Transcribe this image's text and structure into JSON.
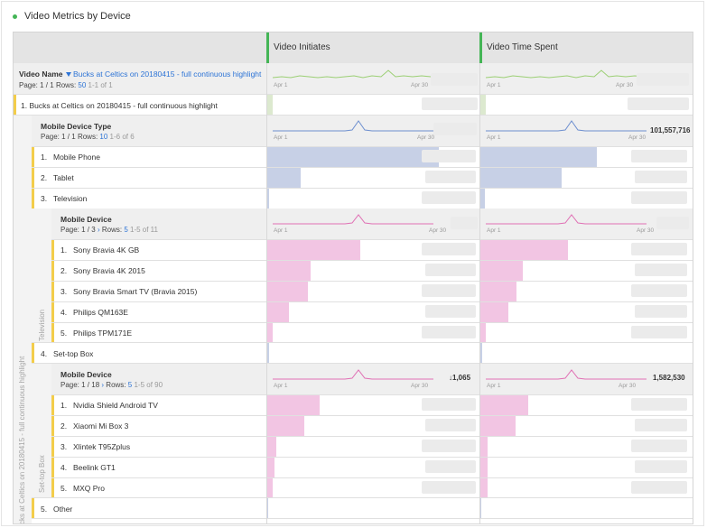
{
  "panel": {
    "title": "Video Metrics by Device"
  },
  "columns": [
    {
      "label": "Video Initiates",
      "axis_start": "Apr 1",
      "axis_end": "Apr 30"
    },
    {
      "label": "Video Time Spent",
      "axis_start": "Apr 1",
      "axis_end": "Apr 30"
    }
  ],
  "video_name": {
    "label": "Video Name",
    "filter": "Bucks at Celtics on 20180415 - full continuous highlight",
    "page": "Page: 1 / 1",
    "rows_label": "Rows:",
    "rows": "50",
    "range": "1-1 of 1",
    "item_num": "1.",
    "item": "Bucks at Celtics on 20180415 - full continuous highlight"
  },
  "mobile_device_type": {
    "label": "Mobile Device Type",
    "page": "Page: 1 / 1",
    "rows_label": "Rows:",
    "rows": "10",
    "range": "1-6 of 6",
    "total_time_spent": "101,557,716",
    "items": [
      {
        "num": "1.",
        "name": "Mobile Phone",
        "initiates_share": 0.98,
        "time_share": 0.56
      },
      {
        "num": "2.",
        "name": "Tablet",
        "initiates_share": 0.19,
        "time_share": 0.39
      },
      {
        "num": "3.",
        "name": "Television",
        "initiates_share": 0.01,
        "time_share": 0.02
      }
    ],
    "item4": {
      "num": "4.",
      "name": "Set-top Box"
    },
    "item5": {
      "num": "5.",
      "name": "Other"
    }
  },
  "tv_devices": {
    "label": "Mobile Device",
    "page": "Page: 1 / 3",
    "rows_label": "Rows:",
    "rows": "5",
    "range": "1-5 of 11",
    "side_label": "Television",
    "items": [
      {
        "num": "1.",
        "name": "Sony Bravia 4K GB",
        "initiates_share": 1.0,
        "time_share": 1.0
      },
      {
        "num": "2.",
        "name": "Sony Bravia 4K 2015",
        "initiates_share": 0.47,
        "time_share": 0.48
      },
      {
        "num": "3.",
        "name": "Sony Bravia Smart TV (Bravia 2015)",
        "initiates_share": 0.44,
        "time_share": 0.41
      },
      {
        "num": "4.",
        "name": "Philips QM163E",
        "initiates_share": 0.23,
        "time_share": 0.32
      },
      {
        "num": "5.",
        "name": "Philips TPM171E",
        "initiates_share": 0.06,
        "time_share": 0.06
      }
    ]
  },
  "stb_devices": {
    "label": "Mobile Device",
    "page": "Page: 1 / 18",
    "rows_label": "Rows:",
    "rows": "5",
    "range": "1-5 of 90",
    "side_label": "Set-top Box",
    "total_initiates": "1,065",
    "total_time_spent": "1,582,530",
    "items": [
      {
        "num": "1.",
        "name": "Nvidia Shield Android TV",
        "initiates_share": 1.0,
        "time_share": 1.0
      },
      {
        "num": "2.",
        "name": "Xiaomi Mi Box 3",
        "initiates_share": 0.71,
        "time_share": 0.74
      },
      {
        "num": "3.",
        "name": "Xlintek T95Zplus",
        "initiates_share": 0.17,
        "time_share": 0.15
      },
      {
        "num": "4.",
        "name": "Beelink GT1",
        "initiates_share": 0.13,
        "time_share": 0.15
      },
      {
        "num": "5.",
        "name": "MXQ Pro",
        "initiates_share": 0.1,
        "time_share": 0.15
      }
    ]
  },
  "left_vertical_label": "cks at Celtics on 20180415 - full continuous highlight",
  "colors": {
    "accent_green": "#44b556",
    "accent_yellow": "#f3cd4b",
    "link_blue": "#2d74d6",
    "spark_green": "#9bcf74",
    "spark_blue": "#6d8fcf",
    "spark_pink": "#e070b4",
    "bar_blue": "#c7d0e6",
    "bar_pink": "#f2c5e3"
  }
}
